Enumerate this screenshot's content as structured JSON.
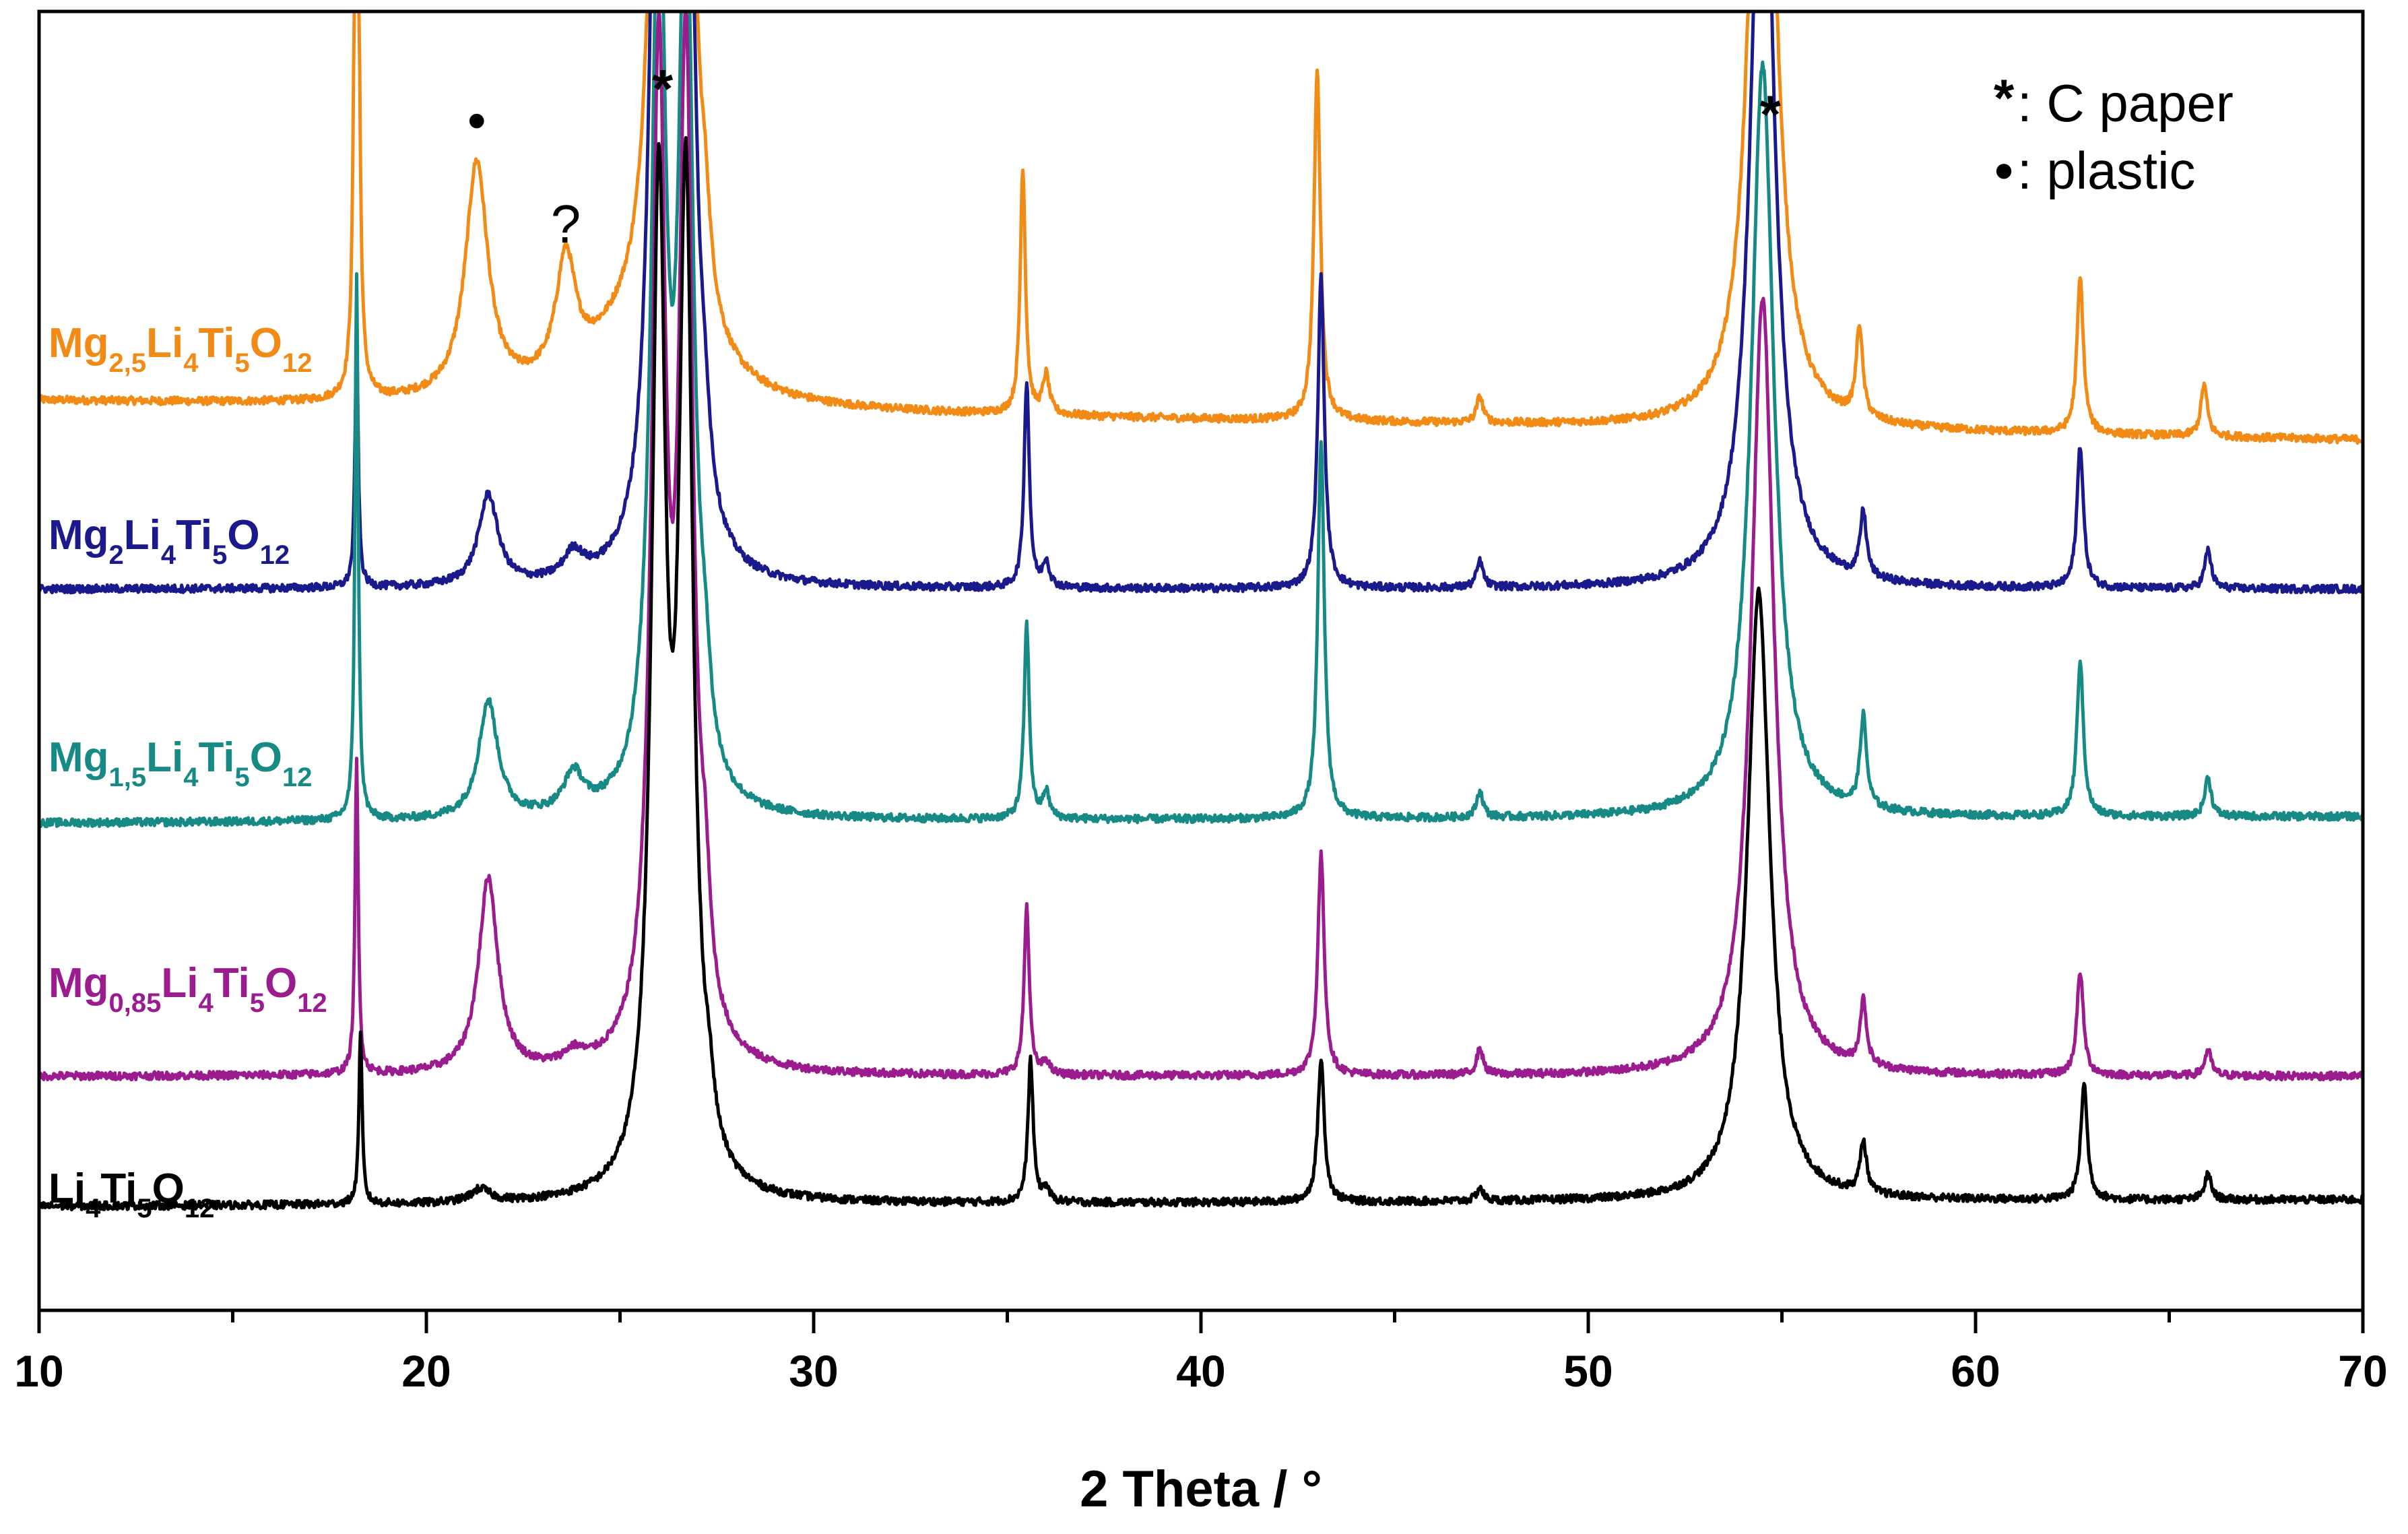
{
  "chart_data": {
    "type": "line",
    "title": "",
    "xlabel": "2 Theta / °",
    "ylabel": "",
    "xlim": [
      10,
      70
    ],
    "ylim": [
      0,
      1
    ],
    "x_ticks": [
      10,
      20,
      30,
      40,
      50,
      60,
      70
    ],
    "x_minor_step": 5,
    "grid": false,
    "series": [
      {
        "name": "Mg2,5Li4Ti5O12",
        "label_parts": [
          {
            "t": "Mg",
            "s": false
          },
          {
            "t": "2,5",
            "s": true
          },
          {
            "t": "Li",
            "s": false
          },
          {
            "t": "4",
            "s": true
          },
          {
            "t": "Ti",
            "s": false
          },
          {
            "t": "5",
            "s": true
          },
          {
            "t": "O",
            "s": false
          },
          {
            "t": "12",
            "s": true
          }
        ],
        "color": "#f28a16",
        "baseline_start": 0.7,
        "baseline_end": 0.67,
        "peaks": [
          [
            18.2,
            0.9,
            0.05
          ],
          [
            21.3,
            0.18,
            0.35
          ],
          [
            23.6,
            0.09,
            0.3
          ],
          [
            25.4,
            0.05,
            1.6
          ],
          [
            26.05,
            0.8,
            0.22
          ],
          [
            26.65,
            0.8,
            0.22
          ],
          [
            27.2,
            0.05,
            0.15
          ],
          [
            35.4,
            0.19,
            0.08
          ],
          [
            36.0,
            0.03,
            0.1
          ],
          [
            43.0,
            0.27,
            0.1
          ],
          [
            47.2,
            0.02,
            0.1
          ],
          [
            54.5,
            0.7,
            0.35
          ],
          [
            57.0,
            0.07,
            0.1
          ],
          [
            62.7,
            0.12,
            0.1
          ],
          [
            65.9,
            0.04,
            0.1
          ]
        ]
      },
      {
        "name": "Mg2Li4Ti5O12",
        "label_parts": [
          {
            "t": "Mg",
            "s": false
          },
          {
            "t": "2",
            "s": true
          },
          {
            "t": "Li",
            "s": false
          },
          {
            "t": "4",
            "s": true
          },
          {
            "t": "Ti",
            "s": false
          },
          {
            "t": "5",
            "s": true
          },
          {
            "t": "O",
            "s": false
          },
          {
            "t": "12",
            "s": true
          }
        ],
        "color": "#1a1a8c",
        "baseline_start": 0.555,
        "baseline_end": 0.555,
        "peaks": [
          [
            18.2,
            0.19,
            0.05
          ],
          [
            21.6,
            0.07,
            0.3
          ],
          [
            23.8,
            0.02,
            0.3
          ],
          [
            26.0,
            0.8,
            0.22
          ],
          [
            26.7,
            0.8,
            0.22
          ],
          [
            27.2,
            0.04,
            0.15
          ],
          [
            35.5,
            0.16,
            0.08
          ],
          [
            36.0,
            0.02,
            0.1
          ],
          [
            43.1,
            0.24,
            0.1
          ],
          [
            47.2,
            0.02,
            0.1
          ],
          [
            54.5,
            0.65,
            0.35
          ],
          [
            57.1,
            0.05,
            0.1
          ],
          [
            62.7,
            0.11,
            0.1
          ],
          [
            66.0,
            0.03,
            0.1
          ]
        ]
      },
      {
        "name": "Mg1,5Li4Ti5O12",
        "label_parts": [
          {
            "t": "Mg",
            "s": false
          },
          {
            "t": "1,5",
            "s": true
          },
          {
            "t": "Li",
            "s": false
          },
          {
            "t": "4",
            "s": true
          },
          {
            "t": "Ti",
            "s": false
          },
          {
            "t": "5",
            "s": true
          },
          {
            "t": "O",
            "s": false
          },
          {
            "t": "12",
            "s": true
          }
        ],
        "color": "#178a86",
        "baseline_start": 0.375,
        "baseline_end": 0.38,
        "peaks": [
          [
            18.2,
            0.42,
            0.05
          ],
          [
            21.6,
            0.09,
            0.3
          ],
          [
            23.8,
            0.03,
            0.3
          ],
          [
            26.0,
            0.7,
            0.22
          ],
          [
            26.7,
            0.7,
            0.22
          ],
          [
            27.2,
            0.05,
            0.15
          ],
          [
            35.5,
            0.15,
            0.08
          ],
          [
            36.0,
            0.02,
            0.1
          ],
          [
            43.1,
            0.29,
            0.1
          ],
          [
            47.2,
            0.02,
            0.1
          ],
          [
            54.5,
            0.58,
            0.35
          ],
          [
            57.1,
            0.07,
            0.1
          ],
          [
            62.7,
            0.12,
            0.1
          ],
          [
            66.0,
            0.03,
            0.1
          ]
        ]
      },
      {
        "name": "Mg0,85Li4Ti5O12",
        "label_parts": [
          {
            "t": "Mg",
            "s": false
          },
          {
            "t": "0,85",
            "s": true
          },
          {
            "t": "Li",
            "s": false
          },
          {
            "t": "4",
            "s": true
          },
          {
            "t": "Ti",
            "s": false
          },
          {
            "t": "5",
            "s": true
          },
          {
            "t": "O",
            "s": false
          },
          {
            "t": "12",
            "s": true
          }
        ],
        "color": "#9b1c8e",
        "baseline_start": 0.18,
        "baseline_end": 0.18,
        "peaks": [
          [
            18.2,
            0.24,
            0.05
          ],
          [
            21.6,
            0.15,
            0.3
          ],
          [
            23.8,
            0.01,
            0.3
          ],
          [
            26.0,
            0.75,
            0.22
          ],
          [
            26.7,
            0.75,
            0.22
          ],
          [
            27.2,
            0.07,
            0.15
          ],
          [
            35.5,
            0.13,
            0.08
          ],
          [
            36.0,
            0.01,
            0.1
          ],
          [
            43.1,
            0.17,
            0.1
          ],
          [
            47.2,
            0.02,
            0.1
          ],
          [
            54.5,
            0.6,
            0.35
          ],
          [
            57.1,
            0.05,
            0.1
          ],
          [
            62.7,
            0.08,
            0.1
          ],
          [
            66.0,
            0.02,
            0.1
          ]
        ]
      },
      {
        "name": "Li4Ti5O12",
        "label_parts": [
          {
            "t": "Li",
            "s": false
          },
          {
            "t": "4",
            "s": true
          },
          {
            "t": "Ti",
            "s": false
          },
          {
            "t": "5",
            "s": true
          },
          {
            "t": "O",
            "s": false
          },
          {
            "t": "12",
            "s": true
          }
        ],
        "color": "#000000",
        "baseline_start": 0.08,
        "baseline_end": 0.085,
        "peaks": [
          [
            18.3,
            0.13,
            0.05
          ],
          [
            21.4,
            0.01,
            0.3
          ],
          [
            26.0,
            0.75,
            0.22
          ],
          [
            26.7,
            0.75,
            0.22
          ],
          [
            27.3,
            0.03,
            0.15
          ],
          [
            35.6,
            0.11,
            0.08
          ],
          [
            36.0,
            0.01,
            0.1
          ],
          [
            43.1,
            0.11,
            0.1
          ],
          [
            47.2,
            0.01,
            0.1
          ],
          [
            54.4,
            0.47,
            0.35
          ],
          [
            57.1,
            0.04,
            0.1
          ],
          [
            62.8,
            0.09,
            0.1
          ],
          [
            66.0,
            0.02,
            0.1
          ]
        ]
      }
    ],
    "annotations": [
      {
        "id": "star-1",
        "text": "*",
        "x": 26.1,
        "y": 0.955
      },
      {
        "id": "star-2",
        "text": "*",
        "x": 54.7,
        "y": 0.935
      },
      {
        "id": "dot-1",
        "text": "•",
        "x": 21.3,
        "y": 0.915
      },
      {
        "id": "question",
        "text": "?",
        "x": 23.6,
        "y": 0.835
      }
    ],
    "legend": {
      "position": "top-right",
      "entries": [
        {
          "symbol": "*",
          "text": ": C paper"
        },
        {
          "symbol": "•",
          "text": ": plastic"
        }
      ]
    }
  }
}
